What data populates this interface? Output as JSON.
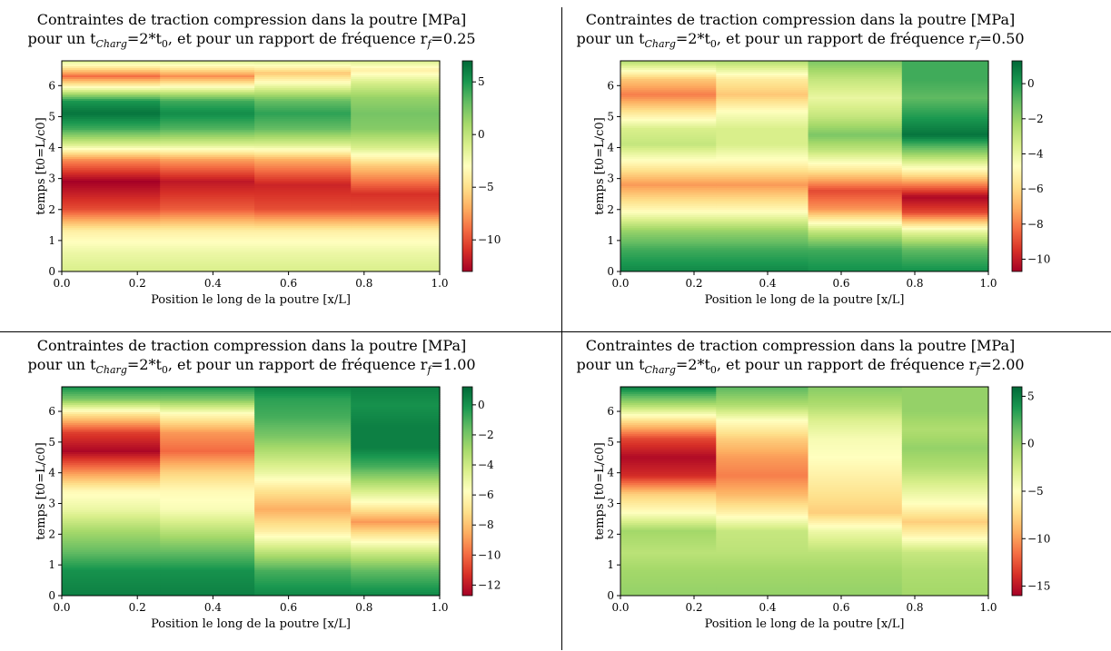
{
  "figure": {
    "colormap": {
      "name": "RdYlGn",
      "stops": [
        "#a50026",
        "#d73027",
        "#f46d43",
        "#fdae61",
        "#fee08b",
        "#ffffbf",
        "#d9ef8b",
        "#a6d96a",
        "#66bd63",
        "#1a9850",
        "#006837"
      ]
    }
  },
  "chart_data": [
    {
      "type": "heatmap",
      "title_line1": "Contraintes de traction compression dans la poutre [MPa]",
      "title_line2_prefix": "pour un t",
      "title_line2_charg": "Charg",
      "title_line2_mid": "=2*t",
      "title_line2_zero": "0",
      "title_line2_suffix": ", et pour un rapport de fréquence r",
      "title_line2_f": "f",
      "title_line2_value": "=0.25",
      "xlabel": "Position le long de la poutre [x/L]",
      "ylabel": "temps [t0=L/c0]",
      "xlim": [
        0,
        1
      ],
      "ylim": [
        0,
        6.8
      ],
      "xticks": [
        "0.0",
        "0.2",
        "0.4",
        "0.6",
        "0.8",
        "1.0"
      ],
      "yticks": [
        "0",
        "1",
        "2",
        "3",
        "4",
        "5",
        "6"
      ],
      "colorbar_range": [
        -13,
        7
      ],
      "colorbar_ticks": [
        5,
        0,
        -5,
        -10
      ],
      "colorbar_tick_labels": [
        "5",
        "0",
        "−5",
        "−10"
      ],
      "segment_boundaries": [
        0,
        0.26,
        0.51,
        0.765,
        1.0
      ],
      "value_profiles": [
        [
          [
            0,
            -1
          ],
          [
            0.6,
            -2
          ],
          [
            1.3,
            -4
          ],
          [
            2.0,
            -10
          ],
          [
            2.9,
            -13
          ],
          [
            3.6,
            -8
          ],
          [
            4.1,
            -1
          ],
          [
            4.6,
            4
          ],
          [
            5.1,
            6.5
          ],
          [
            5.5,
            5
          ],
          [
            6.0,
            -4
          ],
          [
            6.3,
            -9
          ],
          [
            6.8,
            -1
          ]
        ],
        [
          [
            0,
            -1
          ],
          [
            0.6,
            -2
          ],
          [
            1.3,
            -4
          ],
          [
            2.0,
            -9.5
          ],
          [
            2.9,
            -12
          ],
          [
            3.6,
            -7.5
          ],
          [
            4.1,
            -1
          ],
          [
            4.6,
            3.5
          ],
          [
            5.1,
            5.5
          ],
          [
            5.5,
            4
          ],
          [
            6.0,
            -3.5
          ],
          [
            6.3,
            -8
          ],
          [
            6.8,
            -1
          ]
        ],
        [
          [
            0,
            -1
          ],
          [
            0.6,
            -2
          ],
          [
            1.3,
            -4
          ],
          [
            2.0,
            -10
          ],
          [
            2.8,
            -11.5
          ],
          [
            3.6,
            -7
          ],
          [
            4.1,
            -1
          ],
          [
            4.6,
            3
          ],
          [
            5.1,
            4.5
          ],
          [
            5.5,
            3
          ],
          [
            6.0,
            -2
          ],
          [
            6.4,
            -6
          ],
          [
            6.8,
            -1
          ]
        ],
        [
          [
            0,
            -1
          ],
          [
            0.6,
            -2
          ],
          [
            1.3,
            -4
          ],
          [
            2.0,
            -10
          ],
          [
            2.5,
            -11
          ],
          [
            3.4,
            -6
          ],
          [
            4.0,
            -1
          ],
          [
            4.6,
            2
          ],
          [
            5.1,
            2.5
          ],
          [
            5.6,
            1.5
          ],
          [
            6.1,
            -1
          ],
          [
            6.5,
            -4
          ],
          [
            6.8,
            -1
          ]
        ]
      ]
    },
    {
      "type": "heatmap",
      "title_line1": "Contraintes de traction compression dans la poutre [MPa]",
      "title_line2_prefix": "pour un t",
      "title_line2_charg": "Charg",
      "title_line2_mid": "=2*t",
      "title_line2_zero": "0",
      "title_line2_suffix": ", et pour un rapport de fréquence r",
      "title_line2_f": "f",
      "title_line2_value": "=0.50",
      "xlabel": "Position le long de la poutre [x/L]",
      "ylabel": "temps [t0=L/c0]",
      "xlim": [
        0,
        1
      ],
      "ylim": [
        0,
        6.8
      ],
      "xticks": [
        "0.0",
        "0.2",
        "0.4",
        "0.6",
        "0.8",
        "1.0"
      ],
      "yticks": [
        "0",
        "1",
        "2",
        "3",
        "4",
        "5",
        "6"
      ],
      "colorbar_range": [
        -10.7,
        1.3
      ],
      "colorbar_ticks": [
        0,
        -2,
        -4,
        -6,
        -8,
        -10
      ],
      "colorbar_tick_labels": [
        "0",
        "−2",
        "−4",
        "−6",
        "−8",
        "−10"
      ],
      "segment_boundaries": [
        0,
        0.26,
        0.51,
        0.765,
        1.0
      ],
      "value_profiles": [
        [
          [
            0,
            0.5
          ],
          [
            0.7,
            -0.5
          ],
          [
            1.3,
            -2
          ],
          [
            2.0,
            -5
          ],
          [
            2.8,
            -7.5
          ],
          [
            3.5,
            -5
          ],
          [
            4.1,
            -3
          ],
          [
            4.6,
            -3.5
          ],
          [
            5.1,
            -5.5
          ],
          [
            5.7,
            -8
          ],
          [
            6.2,
            -6.5
          ],
          [
            6.8,
            -2.5
          ]
        ],
        [
          [
            0,
            0.5
          ],
          [
            0.7,
            -0.5
          ],
          [
            1.3,
            -2
          ],
          [
            2.0,
            -5
          ],
          [
            2.8,
            -7.5
          ],
          [
            3.5,
            -5
          ],
          [
            4.1,
            -3.5
          ],
          [
            4.6,
            -3.5
          ],
          [
            5.1,
            -4.5
          ],
          [
            5.7,
            -6.5
          ],
          [
            6.2,
            -5.5
          ],
          [
            6.8,
            -2.5
          ]
        ],
        [
          [
            0,
            0.3
          ],
          [
            0.7,
            -0.5
          ],
          [
            1.3,
            -3
          ],
          [
            2.0,
            -7.5
          ],
          [
            2.6,
            -9
          ],
          [
            3.3,
            -5.5
          ],
          [
            3.9,
            -3
          ],
          [
            4.4,
            -1.5
          ],
          [
            5.0,
            -3
          ],
          [
            5.6,
            -4
          ],
          [
            6.2,
            -3
          ],
          [
            6.8,
            -1.5
          ]
        ],
        [
          [
            0,
            0.3
          ],
          [
            0.7,
            -1
          ],
          [
            1.3,
            -4
          ],
          [
            1.9,
            -9
          ],
          [
            2.4,
            -10.5
          ],
          [
            3.1,
            -6
          ],
          [
            3.8,
            -2
          ],
          [
            4.4,
            1
          ],
          [
            5.0,
            0
          ],
          [
            5.6,
            -1
          ],
          [
            6.2,
            -0.5
          ],
          [
            6.8,
            -0.5
          ]
        ]
      ]
    },
    {
      "type": "heatmap",
      "title_line1": "Contraintes de traction compression dans la poutre [MPa]",
      "title_line2_prefix": "pour un t",
      "title_line2_charg": "Charg",
      "title_line2_mid": "=2*t",
      "title_line2_zero": "0",
      "title_line2_suffix": ", et pour un rapport de fréquence r",
      "title_line2_f": "f",
      "title_line2_value": "=1.00",
      "xlabel": "Position le long de la poutre [x/L]",
      "ylabel": "temps [t0=L/c0]",
      "xlim": [
        0,
        1
      ],
      "ylim": [
        0,
        6.8
      ],
      "xticks": [
        "0.0",
        "0.2",
        "0.4",
        "0.6",
        "0.8",
        "1.0"
      ],
      "yticks": [
        "0",
        "1",
        "2",
        "3",
        "4",
        "5",
        "6"
      ],
      "colorbar_range": [
        -12.7,
        1.2
      ],
      "colorbar_ticks": [
        0,
        -2,
        -4,
        -6,
        -8,
        -10,
        -12
      ],
      "colorbar_tick_labels": [
        "0",
        "−2",
        "−4",
        "−6",
        "−8",
        "−10",
        "−12"
      ],
      "segment_boundaries": [
        0,
        0.26,
        0.51,
        0.765,
        1.0
      ],
      "value_profiles": [
        [
          [
            0,
            0.5
          ],
          [
            0.8,
            0
          ],
          [
            1.4,
            -1.5
          ],
          [
            2.1,
            -3
          ],
          [
            2.8,
            -5
          ],
          [
            3.4,
            -6
          ],
          [
            4.0,
            -9
          ],
          [
            4.7,
            -12.5
          ],
          [
            5.3,
            -11
          ],
          [
            5.9,
            -7
          ],
          [
            6.4,
            -2
          ],
          [
            6.8,
            0
          ]
        ],
        [
          [
            0,
            0.5
          ],
          [
            0.8,
            0
          ],
          [
            1.4,
            -1.5
          ],
          [
            2.1,
            -3.5
          ],
          [
            2.8,
            -5.5
          ],
          [
            3.4,
            -6
          ],
          [
            4.0,
            -7.5
          ],
          [
            4.7,
            -10
          ],
          [
            5.3,
            -9
          ],
          [
            5.9,
            -6
          ],
          [
            6.4,
            -2
          ],
          [
            6.8,
            0
          ]
        ],
        [
          [
            0,
            0.3
          ],
          [
            0.8,
            -1
          ],
          [
            1.4,
            -3.5
          ],
          [
            2.1,
            -6.5
          ],
          [
            2.8,
            -8.5
          ],
          [
            3.4,
            -7
          ],
          [
            4.0,
            -5
          ],
          [
            4.6,
            -3.5
          ],
          [
            5.2,
            -2
          ],
          [
            5.8,
            -1
          ],
          [
            6.4,
            -0.5
          ],
          [
            6.8,
            0.5
          ]
        ],
        [
          [
            0,
            0.3
          ],
          [
            0.8,
            -1.5
          ],
          [
            1.4,
            -4
          ],
          [
            2.0,
            -7
          ],
          [
            2.4,
            -9
          ],
          [
            3.0,
            -6
          ],
          [
            3.6,
            -3.5
          ],
          [
            4.2,
            -1
          ],
          [
            4.8,
            0.5
          ],
          [
            5.5,
            0.5
          ],
          [
            6.2,
            0
          ],
          [
            6.8,
            0.5
          ]
        ]
      ]
    },
    {
      "type": "heatmap",
      "title_line1": "Contraintes de traction compression dans la poutre [MPa]",
      "title_line2_prefix": "pour un t",
      "title_line2_charg": "Charg",
      "title_line2_mid": "=2*t",
      "title_line2_zero": "0",
      "title_line2_suffix": ", et pour un rapport de fréquence r",
      "title_line2_f": "f",
      "title_line2_value": "=2.00",
      "xlabel": "Position le long de la poutre [x/L]",
      "ylabel": "temps [t0=L/c0]",
      "xlim": [
        0,
        1
      ],
      "ylim": [
        0,
        6.8
      ],
      "xticks": [
        "0.0",
        "0.2",
        "0.4",
        "0.6",
        "0.8",
        "1.0"
      ],
      "yticks": [
        "0",
        "1",
        "2",
        "3",
        "4",
        "5",
        "6"
      ],
      "colorbar_range": [
        -16,
        6
      ],
      "colorbar_ticks": [
        5,
        0,
        -5,
        -10,
        -15
      ],
      "colorbar_tick_labels": [
        "5",
        "0",
        "−5",
        "−10",
        "−15"
      ],
      "segment_boundaries": [
        0,
        0.26,
        0.51,
        0.765,
        1.0
      ],
      "value_profiles": [
        [
          [
            0,
            0
          ],
          [
            0.8,
            -0.5
          ],
          [
            1.4,
            -1.5
          ],
          [
            2.1,
            -0.5
          ],
          [
            2.7,
            -5
          ],
          [
            3.3,
            -8
          ],
          [
            3.9,
            -14
          ],
          [
            4.5,
            -15.5
          ],
          [
            5.1,
            -13
          ],
          [
            5.7,
            -7
          ],
          [
            6.2,
            -1
          ],
          [
            6.8,
            5
          ]
        ],
        [
          [
            0,
            0
          ],
          [
            0.8,
            -0.5
          ],
          [
            1.4,
            -1.5
          ],
          [
            2.1,
            -2
          ],
          [
            2.7,
            -6
          ],
          [
            3.3,
            -9
          ],
          [
            3.9,
            -11
          ],
          [
            4.5,
            -10
          ],
          [
            5.1,
            -8
          ],
          [
            5.7,
            -5
          ],
          [
            6.2,
            -1
          ],
          [
            6.8,
            2
          ]
        ],
        [
          [
            0,
            0
          ],
          [
            0.8,
            -0.5
          ],
          [
            1.4,
            -1.5
          ],
          [
            2.1,
            -4
          ],
          [
            2.7,
            -8
          ],
          [
            3.3,
            -7
          ],
          [
            3.9,
            -6
          ],
          [
            4.5,
            -5
          ],
          [
            5.1,
            -4.5
          ],
          [
            5.7,
            -3
          ],
          [
            6.2,
            -1
          ],
          [
            6.8,
            0.5
          ]
        ],
        [
          [
            0,
            -0.5
          ],
          [
            0.8,
            -1
          ],
          [
            1.4,
            -2
          ],
          [
            2.0,
            -6
          ],
          [
            2.4,
            -8
          ],
          [
            3.0,
            -5
          ],
          [
            3.6,
            -3
          ],
          [
            4.2,
            -1
          ],
          [
            4.8,
            0
          ],
          [
            5.4,
            -1
          ],
          [
            6.0,
            0
          ],
          [
            6.8,
            0
          ]
        ]
      ]
    }
  ]
}
